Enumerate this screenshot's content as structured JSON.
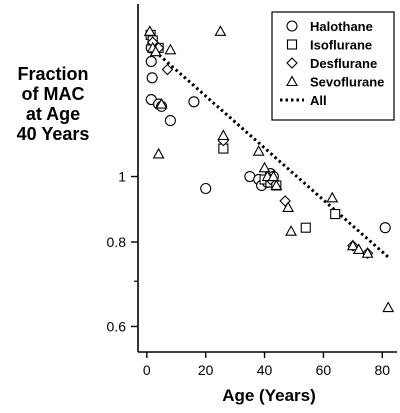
{
  "chart_data": {
    "type": "scatter",
    "xlabel": "Age (Years)",
    "ylabel_lines": [
      "Fraction",
      "of MAC",
      "at Age",
      "40 Years"
    ],
    "x_ticks": [
      0,
      20,
      40,
      60,
      80
    ],
    "y_ticks": [
      0.6,
      0.8,
      1
    ],
    "y_tick_labels": [
      "0.6",
      "0.8",
      "1"
    ],
    "y_scale": "log",
    "xlim": [
      -3,
      85
    ],
    "ylim": [
      0.55,
      1.8
    ],
    "legend_position": "top-right",
    "series": [
      {
        "name": "Halothane",
        "marker": "circle",
        "points": [
          [
            1.5,
            1.55
          ],
          [
            1.5,
            1.48
          ],
          [
            1.8,
            1.4
          ],
          [
            1.5,
            1.3
          ],
          [
            4,
            1.28
          ],
          [
            5,
            1.27
          ],
          [
            8,
            1.21
          ],
          [
            16,
            1.29
          ],
          [
            20,
            0.96
          ],
          [
            35,
            1.0
          ],
          [
            38,
            0.99
          ],
          [
            39,
            0.97
          ],
          [
            41,
            0.98
          ],
          [
            42,
            1.01
          ],
          [
            43,
            1.0
          ],
          [
            81,
            0.84
          ]
        ]
      },
      {
        "name": "Isoflurane",
        "marker": "square",
        "points": [
          [
            1.3,
            1.62
          ],
          [
            2,
            1.59
          ],
          [
            4,
            1.55
          ],
          [
            26,
            1.1
          ],
          [
            40,
            0.99
          ],
          [
            42,
            0.98
          ],
          [
            44,
            0.97
          ],
          [
            54,
            0.84
          ],
          [
            64,
            0.88
          ]
        ]
      },
      {
        "name": "Desflurane",
        "marker": "diamond",
        "points": [
          [
            2,
            1.58
          ],
          [
            4,
            1.55
          ],
          [
            7,
            1.44
          ],
          [
            26,
            1.13
          ],
          [
            42,
            0.99
          ],
          [
            47,
            0.92
          ],
          [
            70,
            0.79
          ],
          [
            75,
            0.77
          ]
        ]
      },
      {
        "name": "Sevoflurane",
        "marker": "triangle",
        "points": [
          [
            1,
            1.64
          ],
          [
            2,
            1.55
          ],
          [
            3,
            1.53
          ],
          [
            8,
            1.54
          ],
          [
            4,
            1.08
          ],
          [
            5,
            1.28
          ],
          [
            25,
            1.64
          ],
          [
            26,
            1.15
          ],
          [
            38,
            1.09
          ],
          [
            40,
            1.03
          ],
          [
            41,
            1.0
          ],
          [
            43,
            1.0
          ],
          [
            44,
            0.97
          ],
          [
            48,
            0.9
          ],
          [
            49,
            0.83
          ],
          [
            63,
            0.93
          ],
          [
            70,
            0.79
          ],
          [
            72,
            0.78
          ],
          [
            75,
            0.77
          ],
          [
            82,
            0.64
          ]
        ]
      }
    ],
    "fit": {
      "name": "All",
      "style": "dotted",
      "points": [
        [
          0,
          1.57
        ],
        [
          82,
          0.76
        ]
      ]
    }
  }
}
